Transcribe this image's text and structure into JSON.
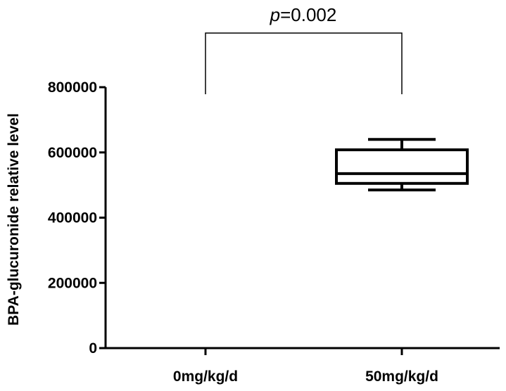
{
  "chart_data": {
    "type": "box",
    "ylabel": "BPA-glucuronide relative level",
    "ylim": [
      0,
      800000
    ],
    "yticks": [
      0,
      200000,
      400000,
      600000,
      800000
    ],
    "ytick_labels": [
      "0",
      "200000",
      "400000",
      "600000",
      "800000"
    ],
    "categories": [
      "0mg/kg/d",
      "50mg/kg/d"
    ],
    "boxes": [
      null,
      {
        "min": 485000,
        "q1": 505000,
        "median": 535000,
        "q3": 608000,
        "max": 640000
      }
    ],
    "annotation": {
      "p_symbol": "p",
      "p_value_text": "=0.002",
      "between": [
        0,
        1
      ]
    }
  }
}
